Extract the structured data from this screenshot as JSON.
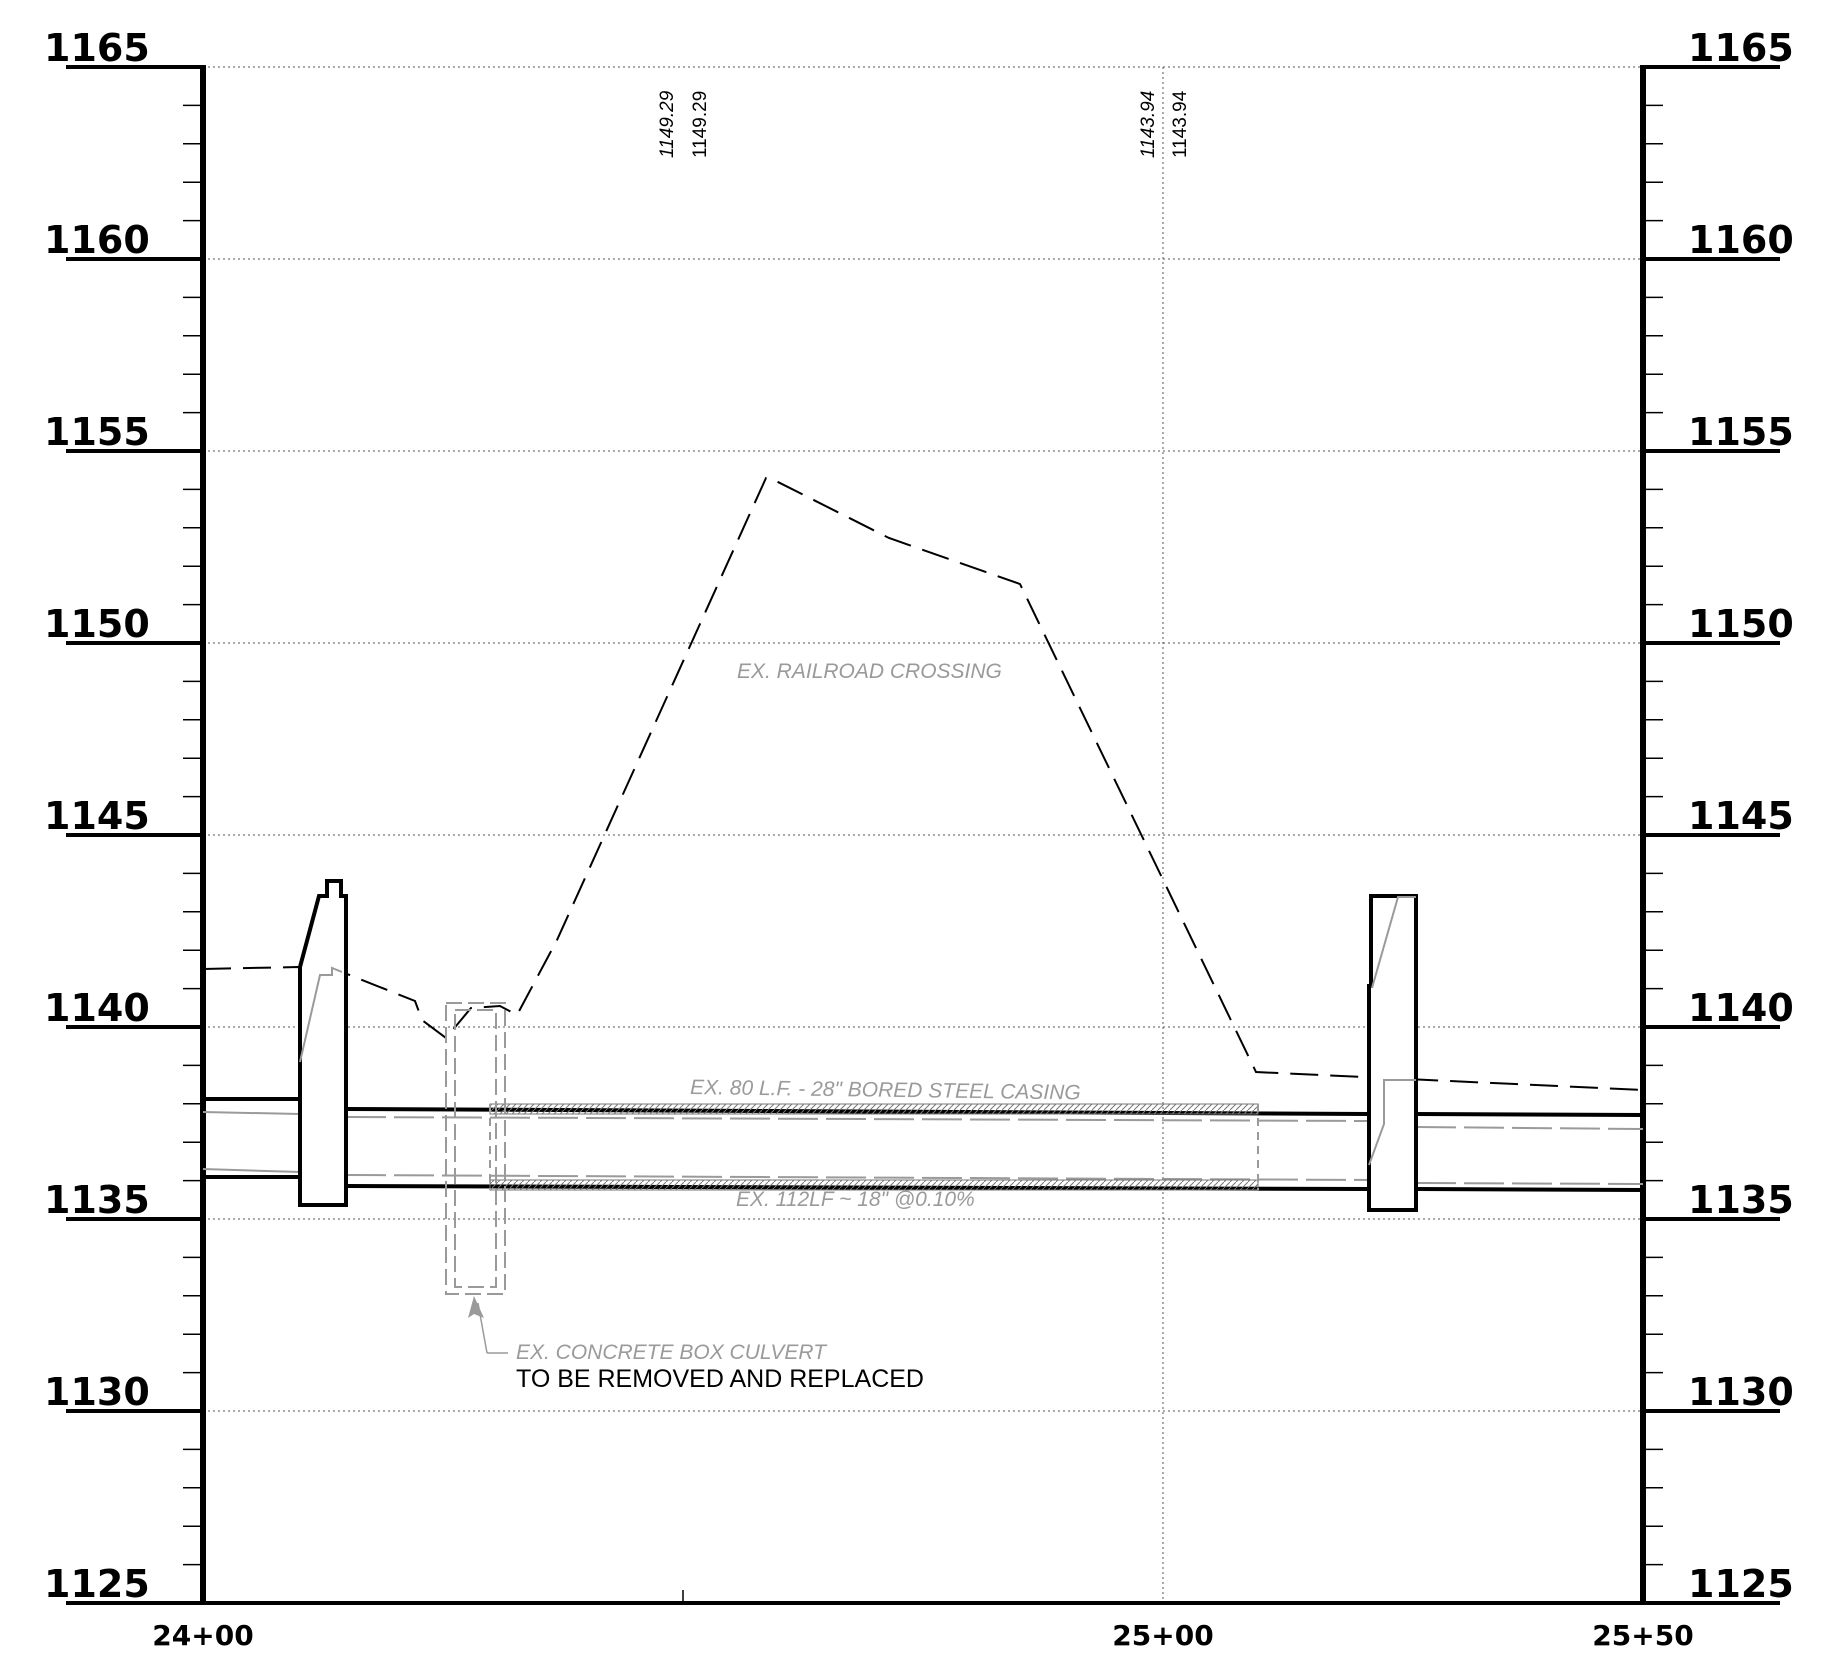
{
  "elevations": [
    "1165",
    "1160",
    "1155",
    "1150",
    "1145",
    "1140",
    "1135",
    "1130",
    "1125"
  ],
  "stations": [
    "24+00",
    "25+00",
    "25+50"
  ],
  "grade_labels": {
    "a_existing": "1149.29",
    "a_proposed": "1149.29",
    "b_existing": "1143.94",
    "b_proposed": "1143.94"
  },
  "notes": {
    "railroad": "EX. RAILROAD CROSSING",
    "casing": "EX. 80 L.F. - 28\" BORED STEEL CASING",
    "pipe": "EX. 112LF ~ 18\" @0.10%",
    "culvert": "EX. CONCRETE BOX CULVERT",
    "culvert_action": "TO BE REMOVED AND REPLACED"
  },
  "colors": {
    "ink": "#000000",
    "existing": "#9a9a9a",
    "grid": "#555555"
  }
}
